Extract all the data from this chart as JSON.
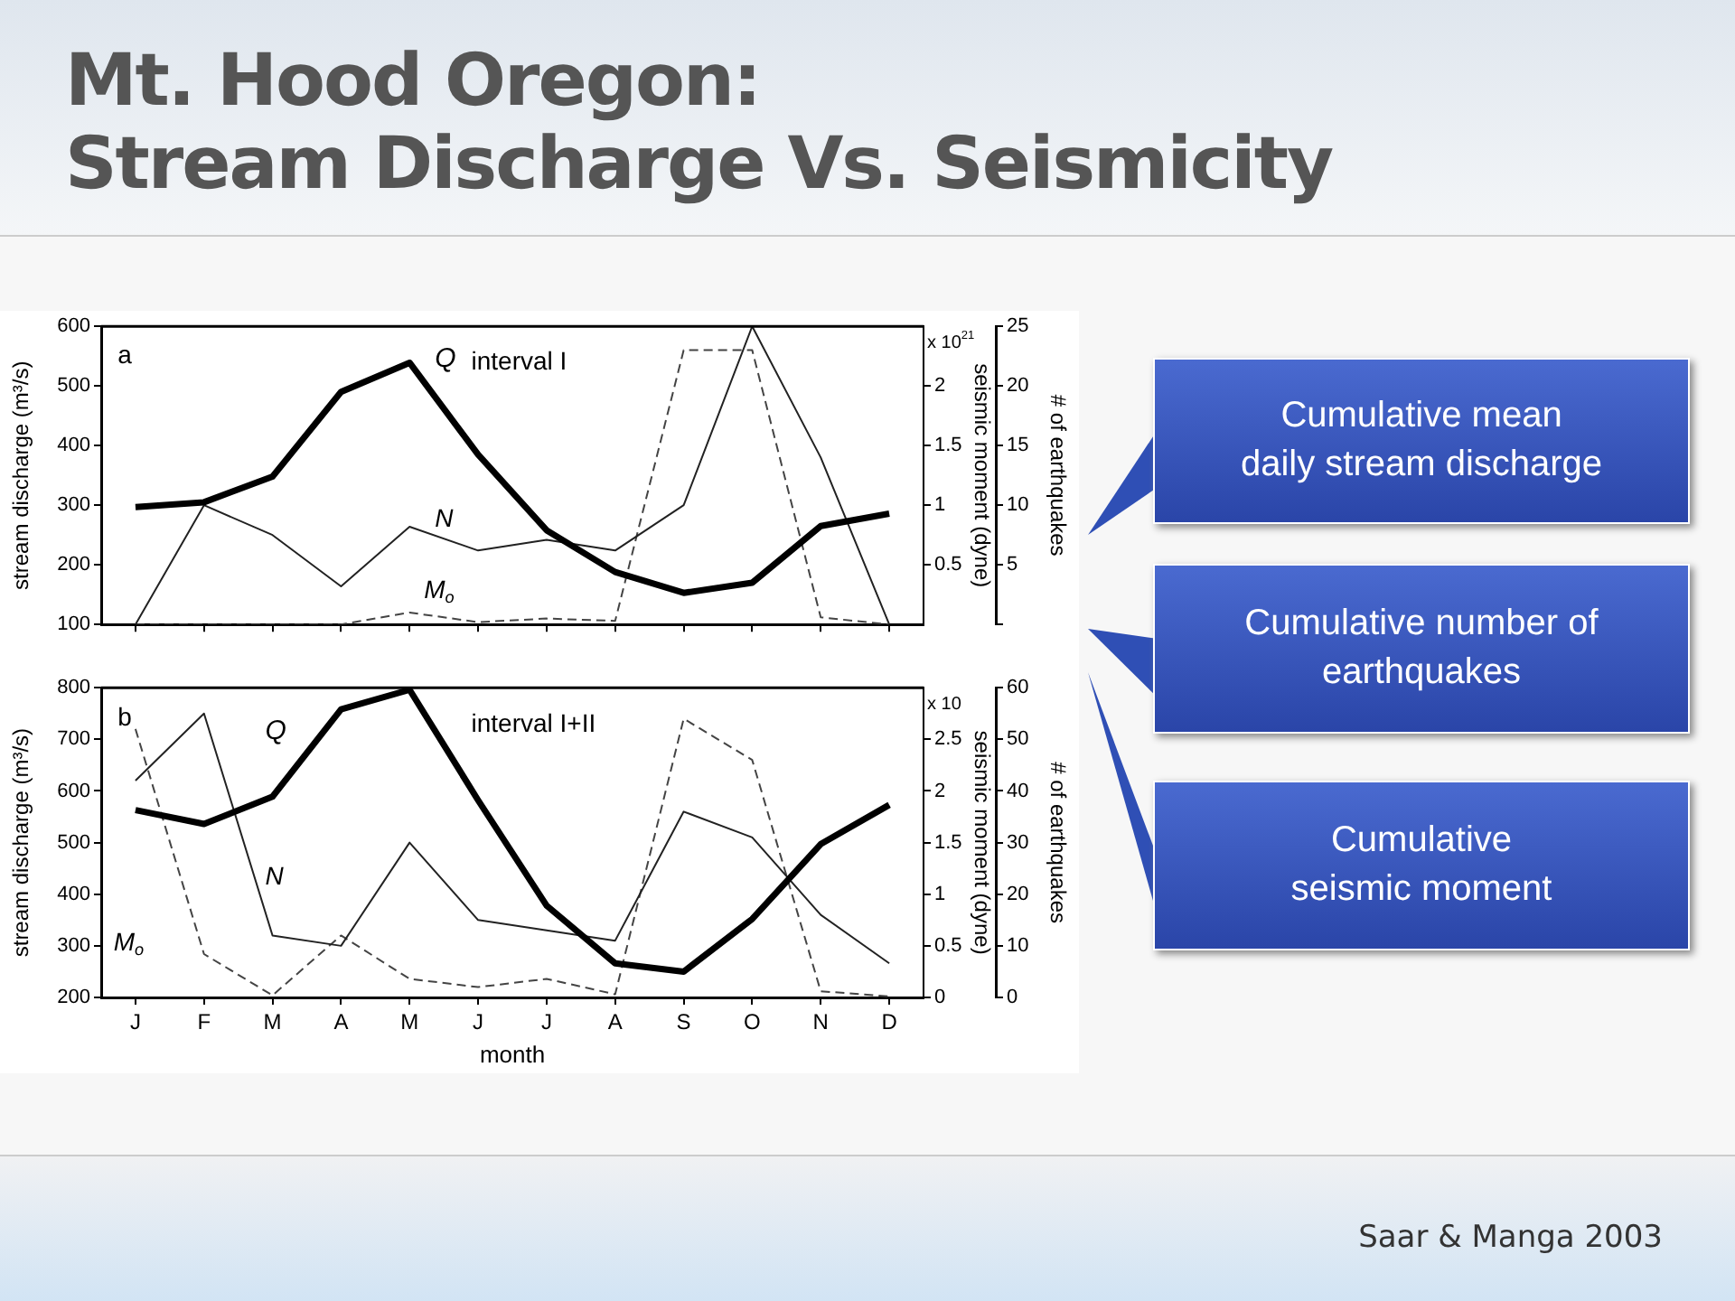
{
  "chart_data": [
    {
      "type": "line",
      "title": "Mt. Hood Oregon:\nStream Discharge Vs. Seismicity",
      "ylabel": "stream discharge (m³/s)",
      "y2label": "seismic moment (dyne)",
      "y3label": "# of earthquakes",
      "categories": [
        null,
        null,
        null,
        null,
        null,
        null,
        null,
        null,
        null,
        null,
        null,
        null
      ],
      "grid": false,
      "legend": false,
      "marker": "none",
      "ylim": [
        100,
        600
      ],
      "yticks": [
        100,
        200,
        300,
        400,
        500,
        600
      ],
      "y2lim": [
        0,
        2.5
      ],
      "y2ticks": [
        0.5,
        1,
        1.5,
        2
      ],
      "y3lim": [
        0,
        25
      ],
      "y3ticks": [
        {
          "value": 0,
          "label": null
        },
        5,
        10,
        15,
        20,
        25
      ],
      "annotations": [
        "a",
        "interval I",
        "x 10$^{21}$"
      ],
      "series": [
        {
          "name": "Q",
          "color": "#000000",
          "line_style": "solid",
          "values": [
            297,
            305,
            348,
            490,
            539,
            385,
            258,
            188,
            153,
            170,
            265,
            286
          ]
        },
        {
          "name": "N",
          "color": "#222222",
          "line_style": "solid",
          "axis": "y3",
          "values": [
            0,
            10,
            7.5,
            3.2,
            8.2,
            6.2,
            7.1,
            6.2,
            10,
            25,
            14,
            0
          ]
        },
        {
          "name": "M$_{o}$",
          "color": "#444444",
          "line_style": "dashed",
          "axis": "y2",
          "values": [
            0,
            0,
            0,
            0,
            0.1,
            0.02,
            0.05,
            0.03,
            2.3,
            2.3,
            0.06,
            0
          ]
        }
      ]
    },
    {
      "type": "line",
      "xlabel": "month",
      "ylabel": "stream discharge (m³/s)",
      "y2label": "seismic moment (dyne)",
      "y3label": "# of earthquakes",
      "categories": [
        "J",
        "F",
        "M",
        "A",
        "M",
        "J",
        "J",
        "A",
        "S",
        "O",
        "N",
        "D"
      ],
      "grid": false,
      "legend": false,
      "marker": "none",
      "ylim": [
        200,
        800
      ],
      "yticks": [
        200,
        300,
        400,
        500,
        600,
        700,
        800
      ],
      "y2lim": [
        0,
        3
      ],
      "y2ticks": [
        0,
        0.5,
        1,
        1.5,
        2,
        2.5
      ],
      "y3lim": [
        0,
        60
      ],
      "y3ticks": [
        0,
        10,
        20,
        30,
        40,
        50,
        60
      ],
      "annotations": [
        "b",
        "interval I+II",
        "x 10"
      ],
      "series": [
        {
          "name": "Q",
          "color": "#000000",
          "line_style": "solid",
          "values": [
            563,
            536,
            589,
            758,
            796,
            582,
            378,
            266,
            250,
            352,
            497,
            573
          ]
        },
        {
          "name": "N",
          "color": "#222222",
          "line_style": "solid",
          "axis": "y3",
          "values": [
            42,
            55,
            12,
            10,
            30,
            15,
            13,
            11,
            36,
            31,
            16,
            6.6
          ]
        },
        {
          "name": "M$_{o}$",
          "color": "#444444",
          "line_style": "dashed",
          "axis": "y2",
          "values": [
            2.6,
            0.42,
            0.02,
            0.6,
            0.18,
            0.1,
            0.18,
            0.03,
            2.7,
            2.3,
            0.06,
            0.01
          ]
        }
      ]
    },
    {
      "type": "other",
      "annotations": [
        "Cumulative mean\ndaily stream discharge",
        "Cumulative number of\nearthquakes",
        "Cumulative\nseismic moment",
        "Saar & Manga 2003"
      ]
    }
  ]
}
